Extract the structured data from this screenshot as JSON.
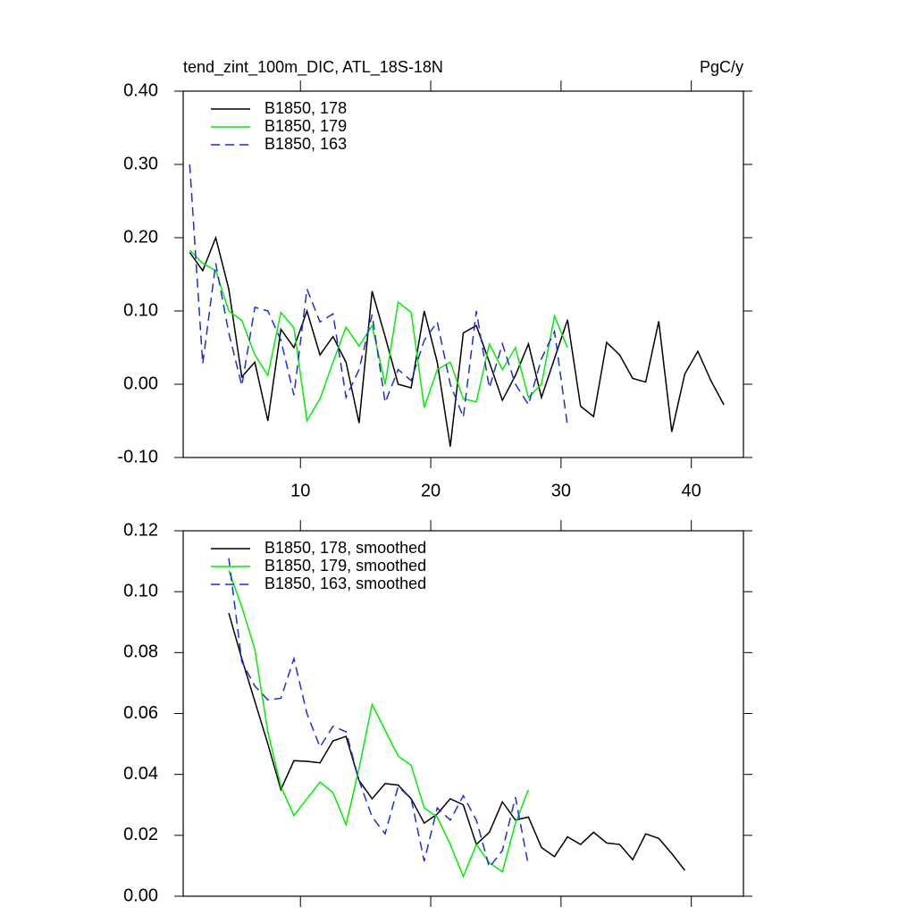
{
  "chart_data": [
    {
      "type": "line",
      "title": "tend_zint_100m_DIC, ATL_18S-18N",
      "units": "PgC/y",
      "xlim": [
        1,
        44
      ],
      "xticks": [
        10,
        20,
        30,
        40
      ],
      "xtick_labels": true,
      "ylim": [
        -0.1,
        0.4
      ],
      "yticks": [
        {
          "value": -0.1,
          "label": "-0.10"
        },
        {
          "value": 0,
          "label": "0.00"
        },
        {
          "value": 0.1,
          "label": "0.10"
        },
        {
          "value": 0.2,
          "label": "0.20"
        },
        {
          "value": 0.3,
          "label": "0.30"
        },
        {
          "value": 0.4,
          "label": "0.40"
        }
      ],
      "legend": "upper left",
      "series": [
        {
          "name": "B1850, 178",
          "color": "#000000",
          "style": "solid",
          "x": [
            1.5,
            2.5,
            3.5,
            4.5,
            5.5,
            6.5,
            7.5,
            8.5,
            9.5,
            10.5,
            11.5,
            12.5,
            13.5,
            14.5,
            15.5,
            16.5,
            17.5,
            18.5,
            19.5,
            20.5,
            21.5,
            22.5,
            23.5,
            24.5,
            25.5,
            26.5,
            27.5,
            28.5,
            29.5,
            30.5,
            31.5,
            32.5,
            33.5,
            34.5,
            35.5,
            36.5,
            37.5,
            38.5,
            39.5,
            40.5,
            41.5,
            42.5
          ],
          "values": [
            0.18,
            0.155,
            0.2,
            0.13,
            0.01,
            0.03,
            -0.05,
            0.075,
            0.05,
            0.1,
            0.04,
            0.065,
            0.03,
            -0.053,
            0.127,
            0.065,
            0.0,
            -0.005,
            0.1,
            0.03,
            -0.085,
            0.07,
            0.08,
            0.03,
            -0.022,
            0.012,
            0.055,
            -0.018,
            0.035,
            0.088,
            -0.03,
            -0.044,
            0.057,
            0.04,
            0.008,
            0.003,
            0.086,
            -0.065,
            0.014,
            0.045,
            0.005,
            -0.028
          ]
        },
        {
          "name": "B1850, 179",
          "color": "#00ee00",
          "style": "solid",
          "x": [
            1.5,
            2.5,
            3.5,
            4.5,
            5.5,
            6.5,
            7.5,
            8.5,
            9.5,
            10.5,
            11.5,
            12.5,
            13.5,
            14.5,
            15.5,
            16.5,
            17.5,
            18.5,
            19.5,
            20.5,
            21.5,
            22.5,
            23.5,
            24.5,
            25.5,
            26.5,
            27.5,
            28.5,
            29.5,
            30.5
          ],
          "values": [
            0.183,
            0.165,
            0.155,
            0.1,
            0.087,
            0.04,
            0.012,
            0.098,
            0.077,
            -0.05,
            -0.02,
            0.03,
            0.078,
            0.052,
            0.08,
            0.0,
            0.112,
            0.098,
            -0.032,
            0.02,
            0.03,
            -0.02,
            -0.024,
            0.055,
            0.02,
            0.05,
            -0.018,
            0.0,
            0.093,
            0.05
          ]
        },
        {
          "name": "B1850, 163",
          "color": "#1a2fd0",
          "style": "dashed",
          "x": [
            1.5,
            2.5,
            3.5,
            4.5,
            5.5,
            6.5,
            7.5,
            8.5,
            9.5,
            10.5,
            11.5,
            12.5,
            13.5,
            14.5,
            15.5,
            16.5,
            17.5,
            18.5,
            19.5,
            20.5,
            21.5,
            22.5,
            23.5,
            24.5,
            25.5,
            26.5,
            27.5,
            28.5,
            29.5,
            30.5
          ],
          "values": [
            0.3,
            0.028,
            0.165,
            0.07,
            -0.002,
            0.105,
            0.1,
            0.06,
            -0.015,
            0.13,
            0.085,
            0.096,
            -0.018,
            0.02,
            0.095,
            -0.025,
            0.02,
            0.005,
            0.06,
            0.085,
            0.0,
            -0.045,
            0.1,
            -0.005,
            0.055,
            0.0,
            -0.028,
            0.035,
            0.072,
            -0.057
          ]
        }
      ]
    },
    {
      "type": "line",
      "xlim": [
        1,
        44
      ],
      "xticks": [
        10,
        20,
        30,
        40
      ],
      "xtick_labels": false,
      "ylim": [
        0,
        0.12
      ],
      "yticks": [
        {
          "value": 0,
          "label": "0.00"
        },
        {
          "value": 0.02,
          "label": "0.02"
        },
        {
          "value": 0.04,
          "label": "0.04"
        },
        {
          "value": 0.06,
          "label": "0.06"
        },
        {
          "value": 0.08,
          "label": "0.08"
        },
        {
          "value": 0.1,
          "label": "0.10"
        },
        {
          "value": 0.12,
          "label": "0.12"
        }
      ],
      "legend": "upper left",
      "series": [
        {
          "name": "B1850, 178, smoothed",
          "color": "#000000",
          "style": "solid",
          "x": [
            4.5,
            5.5,
            6.5,
            7.5,
            8.5,
            9.5,
            10.5,
            11.5,
            12.5,
            13.5,
            14.5,
            15.5,
            16.5,
            17.5,
            18.5,
            19.5,
            20.5,
            21.5,
            22.5,
            23.5,
            24.5,
            25.5,
            26.5,
            27.5,
            28.5,
            29.5,
            30.5,
            31.5,
            32.5,
            33.5,
            34.5,
            35.5,
            36.5,
            37.5,
            38.5,
            39.5
          ],
          "values": [
            0.093,
            0.078,
            0.064,
            0.05,
            0.035,
            0.0445,
            0.0443,
            0.0438,
            0.051,
            0.0525,
            0.038,
            0.032,
            0.037,
            0.0365,
            0.032,
            0.024,
            0.027,
            0.032,
            0.03,
            0.017,
            0.021,
            0.031,
            0.025,
            0.026,
            0.016,
            0.013,
            0.0195,
            0.017,
            0.021,
            0.0175,
            0.017,
            0.012,
            0.0205,
            0.019,
            0.014,
            0.0085
          ]
        },
        {
          "name": "B1850, 179, smoothed",
          "color": "#00ee00",
          "style": "solid",
          "x": [
            4.5,
            5.5,
            6.5,
            7.5,
            8.5,
            9.5,
            10.5,
            11.5,
            12.5,
            13.5,
            14.5,
            15.5,
            16.5,
            17.5,
            18.5,
            19.5,
            20.5,
            21.5,
            22.5,
            23.5,
            24.5,
            25.5,
            26.5,
            27.5
          ],
          "values": [
            0.107,
            0.095,
            0.081,
            0.054,
            0.036,
            0.0265,
            0.032,
            0.0375,
            0.034,
            0.0235,
            0.042,
            0.063,
            0.0545,
            0.046,
            0.043,
            0.029,
            0.026,
            0.017,
            0.0065,
            0.017,
            0.011,
            0.008,
            0.024,
            0.035
          ]
        },
        {
          "name": "B1850, 163, smoothed",
          "color": "#1a2fd0",
          "style": "dashed",
          "x": [
            4.5,
            5.5,
            6.5,
            7.5,
            8.5,
            9.5,
            10.5,
            11.5,
            12.5,
            13.5,
            14.5,
            15.5,
            16.5,
            17.5,
            18.5,
            19.5,
            20.5,
            21.5,
            22.5,
            23.5,
            24.5,
            25.5,
            26.5,
            27.5
          ],
          "values": [
            0.111,
            0.077,
            0.069,
            0.0645,
            0.065,
            0.078,
            0.06,
            0.049,
            0.0558,
            0.054,
            0.038,
            0.026,
            0.0205,
            0.036,
            0.032,
            0.0115,
            0.029,
            0.025,
            0.033,
            0.025,
            0.0095,
            0.015,
            0.0325,
            0.01
          ]
        }
      ]
    }
  ]
}
